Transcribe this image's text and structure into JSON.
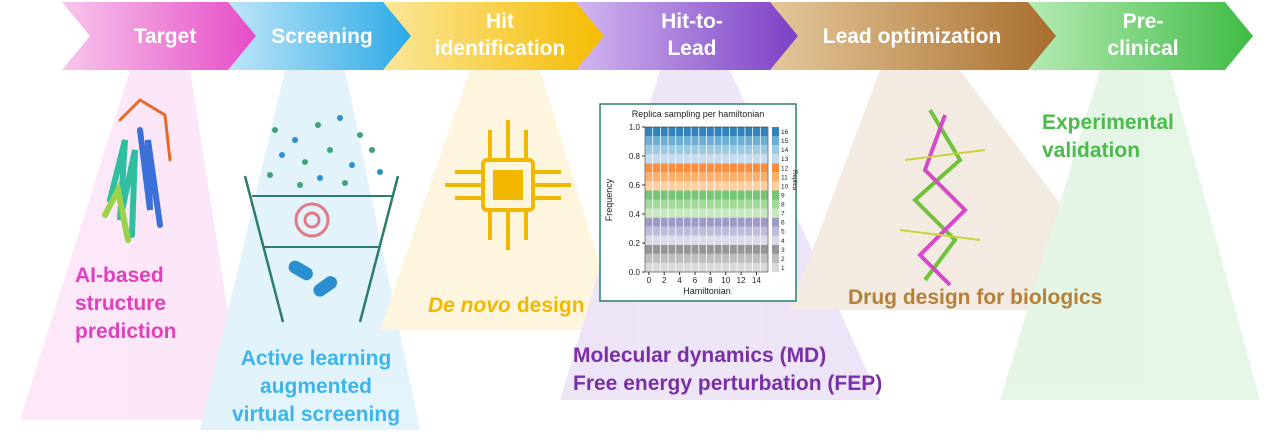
{
  "stages": [
    {
      "lines": [
        "Target"
      ]
    },
    {
      "lines": [
        "Screening"
      ]
    },
    {
      "lines": [
        "Hit",
        "identification"
      ]
    },
    {
      "lines": [
        "Hit-to-",
        "Lead"
      ]
    },
    {
      "lines": [
        "Lead optimization"
      ]
    },
    {
      "lines": [
        "Pre-",
        "clinical"
      ]
    }
  ],
  "captions": {
    "structure": [
      "AI-based",
      "structure",
      "prediction"
    ],
    "screening": [
      "Active learning",
      "augmented",
      "virtual screening"
    ],
    "de_novo": {
      "italic": "De novo",
      "rest": "design"
    },
    "simulation": [
      "Molecular dynamics (MD)",
      "Free energy perturbation (FEP)"
    ],
    "biologics": "Drug design for biologics",
    "experimental": [
      "Experimental",
      "validation"
    ]
  },
  "chart_data": {
    "type": "stacked-bar",
    "title": "Replica sampling per hamiltonian",
    "xlabel": "Hamiltonian",
    "ylabel": "Frequency",
    "colorbar_label": "Replica",
    "xlim": [
      -0.5,
      15.5
    ],
    "xticks": [
      0,
      2,
      4,
      6,
      8,
      10,
      12,
      14
    ],
    "ylim": [
      0,
      1.0
    ],
    "yticks": [
      {
        "value": 0,
        "label": "0.0"
      },
      {
        "value": 0.2,
        "label": "0.2"
      },
      {
        "value": 0.4,
        "label": "0.4"
      },
      {
        "value": 0.6,
        "label": "0.6"
      },
      {
        "value": 0.8,
        "label": "0.8"
      },
      {
        "value": 1.0,
        "label": "1.0"
      }
    ],
    "x": [
      0,
      1,
      2,
      3,
      4,
      5,
      6,
      7,
      8,
      9,
      10,
      11,
      12,
      13,
      14,
      15
    ],
    "series": [
      {
        "name": "1",
        "color": "#d9d9d9",
        "values": [
          0.0625,
          0.0625,
          0.0625,
          0.0625,
          0.0625,
          0.0625,
          0.0625,
          0.0625,
          0.0625,
          0.0625,
          0.0625,
          0.0625,
          0.0625,
          0.0625,
          0.0625,
          0.0625
        ]
      },
      {
        "name": "2",
        "color": "#bdbdbd",
        "values": [
          0.0625,
          0.0625,
          0.0625,
          0.0625,
          0.0625,
          0.0625,
          0.0625,
          0.0625,
          0.0625,
          0.0625,
          0.0625,
          0.0625,
          0.0625,
          0.0625,
          0.0625,
          0.0625
        ]
      },
      {
        "name": "3",
        "color": "#969696",
        "values": [
          0.0625,
          0.0625,
          0.0625,
          0.0625,
          0.0625,
          0.0625,
          0.0625,
          0.0625,
          0.0625,
          0.0625,
          0.0625,
          0.0625,
          0.0625,
          0.0625,
          0.0625,
          0.0625
        ]
      },
      {
        "name": "4",
        "color": "#dadaeb",
        "values": [
          0.0625,
          0.0625,
          0.0625,
          0.0625,
          0.0625,
          0.0625,
          0.0625,
          0.0625,
          0.0625,
          0.0625,
          0.0625,
          0.0625,
          0.0625,
          0.0625,
          0.0625,
          0.0625
        ]
      },
      {
        "name": "5",
        "color": "#bcbddc",
        "values": [
          0.0625,
          0.0625,
          0.0625,
          0.0625,
          0.0625,
          0.0625,
          0.0625,
          0.0625,
          0.0625,
          0.0625,
          0.0625,
          0.0625,
          0.0625,
          0.0625,
          0.0625,
          0.0625
        ]
      },
      {
        "name": "6",
        "color": "#9e9ac8",
        "values": [
          0.0625,
          0.0625,
          0.0625,
          0.0625,
          0.0625,
          0.0625,
          0.0625,
          0.0625,
          0.0625,
          0.0625,
          0.0625,
          0.0625,
          0.0625,
          0.0625,
          0.0625,
          0.0625
        ]
      },
      {
        "name": "7",
        "color": "#c7e9c0",
        "values": [
          0.0625,
          0.0625,
          0.0625,
          0.0625,
          0.0625,
          0.0625,
          0.0625,
          0.0625,
          0.0625,
          0.0625,
          0.0625,
          0.0625,
          0.0625,
          0.0625,
          0.0625,
          0.0625
        ]
      },
      {
        "name": "8",
        "color": "#a1d99b",
        "values": [
          0.0625,
          0.0625,
          0.0625,
          0.0625,
          0.0625,
          0.0625,
          0.0625,
          0.0625,
          0.0625,
          0.0625,
          0.0625,
          0.0625,
          0.0625,
          0.0625,
          0.0625,
          0.0625
        ]
      },
      {
        "name": "9",
        "color": "#74c476",
        "values": [
          0.0625,
          0.0625,
          0.0625,
          0.0625,
          0.0625,
          0.0625,
          0.0625,
          0.0625,
          0.0625,
          0.0625,
          0.0625,
          0.0625,
          0.0625,
          0.0625,
          0.0625,
          0.0625
        ]
      },
      {
        "name": "10",
        "color": "#fdd0a2",
        "values": [
          0.0625,
          0.0625,
          0.0625,
          0.0625,
          0.0625,
          0.0625,
          0.0625,
          0.0625,
          0.0625,
          0.0625,
          0.0625,
          0.0625,
          0.0625,
          0.0625,
          0.0625,
          0.0625
        ]
      },
      {
        "name": "11",
        "color": "#fdae6b",
        "values": [
          0.0625,
          0.0625,
          0.0625,
          0.0625,
          0.0625,
          0.0625,
          0.0625,
          0.0625,
          0.0625,
          0.0625,
          0.0625,
          0.0625,
          0.0625,
          0.0625,
          0.0625,
          0.0625
        ]
      },
      {
        "name": "12",
        "color": "#fd8d3c",
        "values": [
          0.0625,
          0.0625,
          0.0625,
          0.0625,
          0.0625,
          0.0625,
          0.0625,
          0.0625,
          0.0625,
          0.0625,
          0.0625,
          0.0625,
          0.0625,
          0.0625,
          0.0625,
          0.0625
        ]
      },
      {
        "name": "13",
        "color": "#c6dbef",
        "values": [
          0.0625,
          0.0625,
          0.0625,
          0.0625,
          0.0625,
          0.0625,
          0.0625,
          0.0625,
          0.0625,
          0.0625,
          0.0625,
          0.0625,
          0.0625,
          0.0625,
          0.0625,
          0.0625
        ]
      },
      {
        "name": "14",
        "color": "#9ecae1",
        "values": [
          0.0625,
          0.0625,
          0.0625,
          0.0625,
          0.0625,
          0.0625,
          0.0625,
          0.0625,
          0.0625,
          0.0625,
          0.0625,
          0.0625,
          0.0625,
          0.0625,
          0.0625,
          0.0625
        ]
      },
      {
        "name": "15",
        "color": "#6baed6",
        "values": [
          0.0625,
          0.0625,
          0.0625,
          0.0625,
          0.0625,
          0.0625,
          0.0625,
          0.0625,
          0.0625,
          0.0625,
          0.0625,
          0.0625,
          0.0625,
          0.0625,
          0.0625,
          0.0625
        ]
      },
      {
        "name": "16",
        "color": "#3182bd",
        "values": [
          0.0625,
          0.0625,
          0.0625,
          0.0625,
          0.0625,
          0.0625,
          0.0625,
          0.0625,
          0.0625,
          0.0625,
          0.0625,
          0.0625,
          0.0625,
          0.0625,
          0.0625,
          0.0625
        ]
      }
    ]
  }
}
